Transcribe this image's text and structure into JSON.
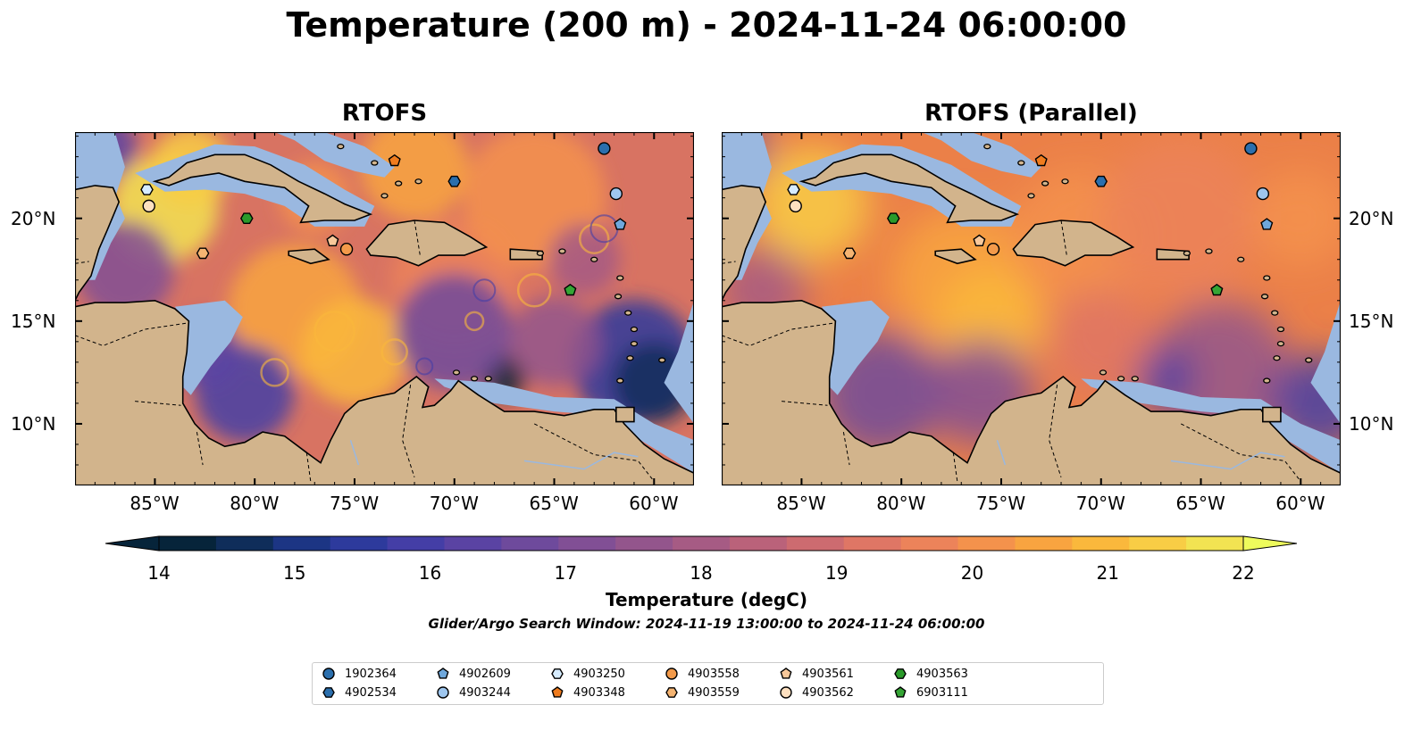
{
  "title": "Temperature (200 m) - 2024-11-24 06:00:00",
  "panels": [
    {
      "title": "RTOFS"
    },
    {
      "title": "RTOFS (Parallel)"
    }
  ],
  "axes": {
    "lon_range": [
      -89,
      -58
    ],
    "lat_range": [
      7,
      24.2
    ],
    "x_ticks": [
      "85°W",
      "80°W",
      "75°W",
      "70°W",
      "65°W",
      "60°W"
    ],
    "x_tick_values": [
      -85,
      -80,
      -75,
      -70,
      -65,
      -60
    ],
    "y_ticks": [
      "20°N",
      "15°N",
      "10°N"
    ],
    "y_tick_values": [
      20,
      15,
      10
    ]
  },
  "colorbar": {
    "label": "Temperature (degC)",
    "ticks": [
      "14",
      "15",
      "16",
      "17",
      "18",
      "19",
      "20",
      "21",
      "22"
    ],
    "min": 14,
    "max": 22,
    "colors": [
      "#06243a",
      "#0f2d5a",
      "#1c3584",
      "#2d3a9c",
      "#443ea6",
      "#5a43a3",
      "#6e4a9c",
      "#814f95",
      "#93558c",
      "#a65b84",
      "#ba627a",
      "#cd6b70",
      "#df7665",
      "#ec835a",
      "#f4924c",
      "#f8a440",
      "#fab83c",
      "#f8cd45",
      "#f2e352"
    ],
    "extend_low_color": "#06243a",
    "extend_high_color": "#eefb5c"
  },
  "search_window": "Glider/Argo Search Window: 2024-11-19 13:00:00 to 2024-11-24 06:00:00",
  "colors": {
    "land": "#d2b48c",
    "shelf": "#9ab8e0",
    "deep_shallow": "#06243a",
    "ocean_warm": "#f09048",
    "ocean_cool": "#7a4a9a"
  },
  "floats": [
    {
      "id": "1902364",
      "marker": "circle",
      "color": "#2b6fad",
      "lon": -62.5,
      "lat": 23.4
    },
    {
      "id": "4902534",
      "marker": "hexagon",
      "color": "#2b6fad",
      "lon": -70.0,
      "lat": 21.8
    },
    {
      "id": "4902609",
      "marker": "pentagon",
      "color": "#6fa8dc",
      "lon": -61.7,
      "lat": 19.7
    },
    {
      "id": "4903244",
      "marker": "circle",
      "color": "#9ec6ee",
      "lon": -61.9,
      "lat": 21.2
    },
    {
      "id": "4903250",
      "marker": "hexagon",
      "color": "#d6ecff",
      "lon": -85.4,
      "lat": 21.4
    },
    {
      "id": "4903348",
      "marker": "pentagon",
      "color": "#f07c1e",
      "lon": -73.0,
      "lat": 22.8
    },
    {
      "id": "4903558",
      "marker": "circle",
      "color": "#f39a4a",
      "lon": -75.4,
      "lat": 18.5
    },
    {
      "id": "4903559",
      "marker": "hexagon",
      "color": "#f5b472",
      "lon": -82.6,
      "lat": 18.3
    },
    {
      "id": "4903561",
      "marker": "pentagon",
      "color": "#f8c89a",
      "lon": -76.1,
      "lat": 18.9
    },
    {
      "id": "4903562",
      "marker": "circle",
      "color": "#fde0c0",
      "lon": -85.3,
      "lat": 20.6
    },
    {
      "id": "4903563",
      "marker": "hexagon",
      "color": "#2a9a2a",
      "lon": -80.4,
      "lat": 20.0
    },
    {
      "id": "6903111",
      "marker": "pentagon",
      "color": "#35a535",
      "lon": -64.2,
      "lat": 16.5
    }
  ]
}
